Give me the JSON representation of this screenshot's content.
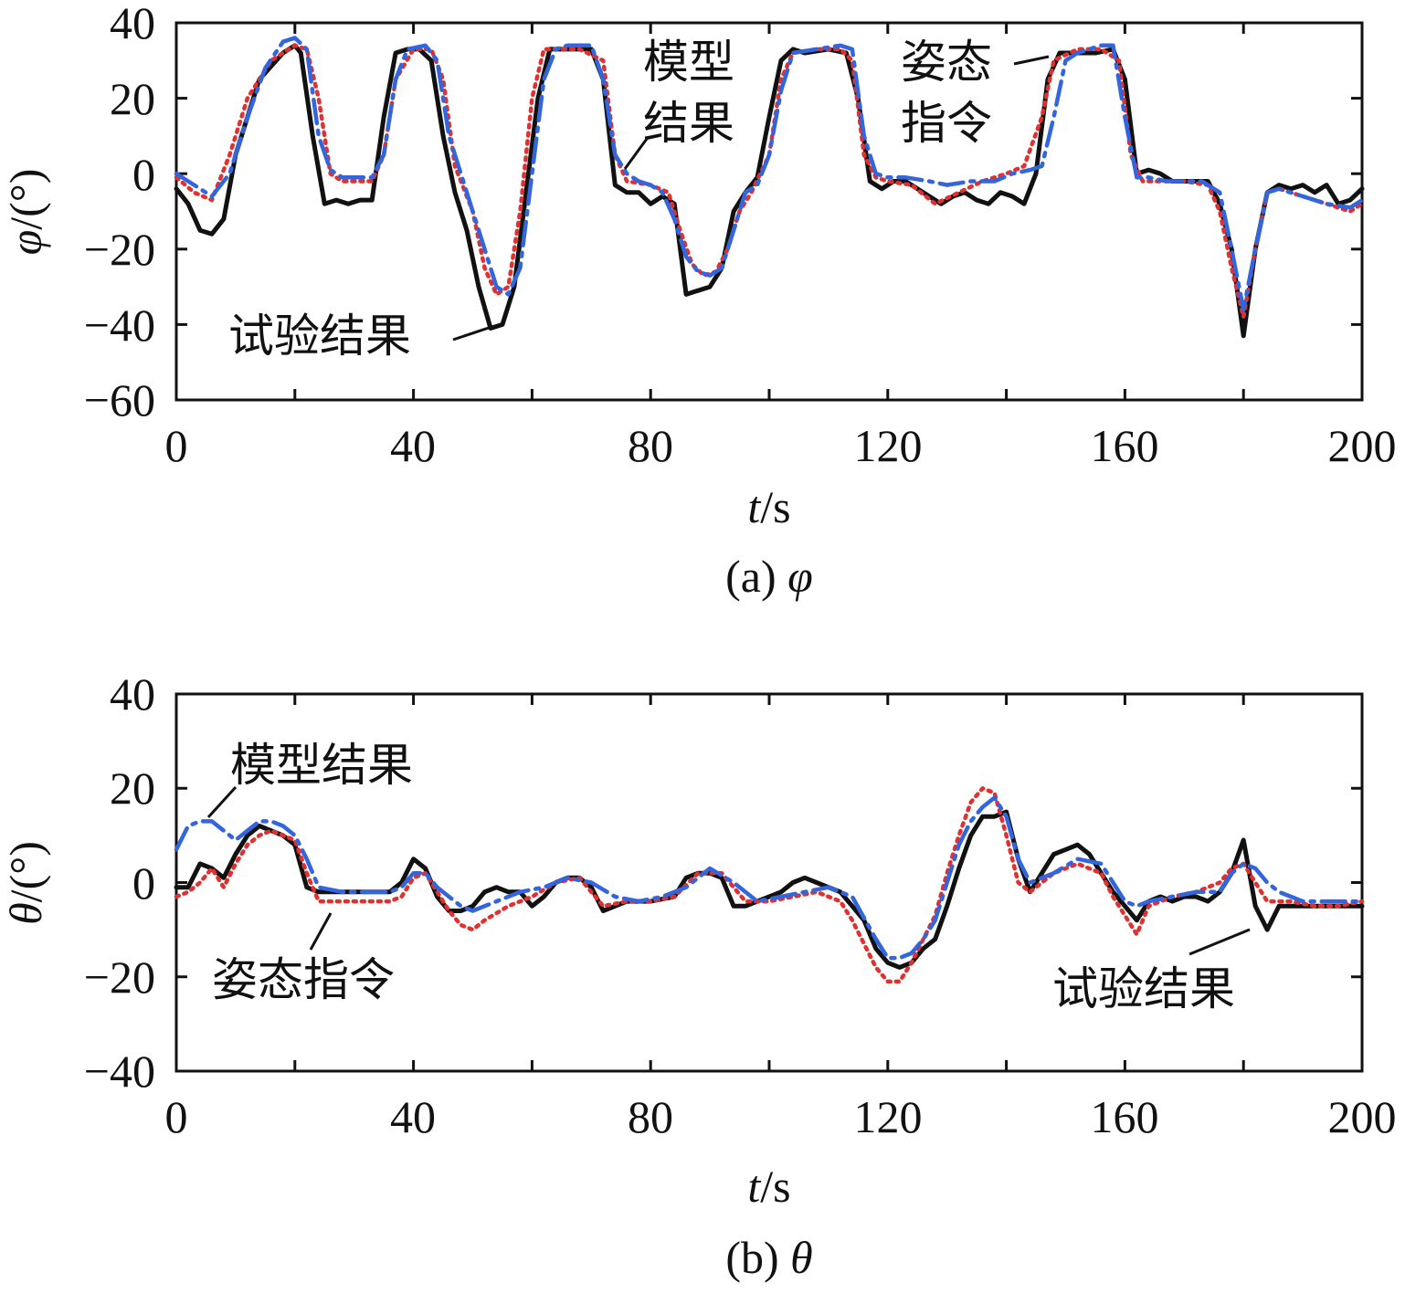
{
  "chart_data": [
    {
      "type": "line",
      "caption": "(a) φ",
      "caption_prefix": "(a) ",
      "caption_symbol": "φ",
      "xlabel_var": "t",
      "xlabel_unit": "/s",
      "ylabel_var": "φ",
      "ylabel_unit": "/(°)",
      "xlim": [
        0,
        200
      ],
      "ylim": [
        -60,
        40
      ],
      "xticks": [
        "0",
        "40",
        "80",
        "120",
        "160",
        "200"
      ],
      "xtick_values": [
        0,
        40,
        80,
        120,
        160,
        200
      ],
      "yticks": [
        "40",
        "20",
        "0",
        "−20",
        "−40",
        "−60"
      ],
      "ytick_values": [
        40,
        20,
        0,
        -20,
        -40,
        -60
      ],
      "grid": false,
      "series": [
        {
          "name": "试验结果",
          "color": "#111111",
          "style": "solid",
          "x": [
            0,
            2,
            4,
            6,
            8,
            10,
            14,
            18,
            20,
            21,
            23,
            25,
            27,
            29,
            31,
            33,
            35,
            37,
            39,
            41,
            43,
            45,
            47,
            49,
            51,
            53,
            55,
            57,
            59,
            61,
            63,
            65,
            67,
            70,
            72,
            74,
            76,
            78,
            80,
            82,
            84,
            86,
            88,
            90,
            92,
            94,
            96,
            98,
            100,
            102,
            104,
            106,
            110,
            113,
            115,
            117,
            119,
            121,
            123,
            125,
            127,
            129,
            131,
            133,
            135,
            137,
            139,
            141,
            143,
            145,
            147,
            149,
            151,
            155,
            158,
            160,
            162,
            164,
            166,
            168,
            170,
            172,
            174,
            176,
            178,
            180,
            182,
            184,
            186,
            188,
            190,
            192,
            194,
            196,
            198,
            200
          ],
          "y": [
            -4,
            -8,
            -15,
            -16,
            -12,
            5,
            25,
            32,
            34,
            32,
            10,
            -8,
            -7,
            -8,
            -7,
            -7,
            15,
            32,
            33,
            33,
            30,
            10,
            -5,
            -15,
            -30,
            -41,
            -40,
            -30,
            -5,
            20,
            33,
            33,
            33,
            33,
            25,
            -3,
            -5,
            -5,
            -8,
            -6,
            -8,
            -32,
            -31,
            -30,
            -25,
            -10,
            -5,
            -1,
            15,
            30,
            33,
            32,
            33,
            32,
            20,
            -2,
            -4,
            -2,
            -2,
            -4,
            -6,
            -8,
            -6,
            -5,
            -7,
            -8,
            -5,
            -6,
            -8,
            0,
            25,
            32,
            32,
            32,
            33,
            25,
            0,
            1,
            0,
            -2,
            -2,
            -2,
            -2,
            -8,
            -20,
            -43,
            -20,
            -5,
            -3,
            -4,
            -3,
            -5,
            -3,
            -8,
            -7,
            -4
          ]
        },
        {
          "name": "模型结果",
          "color": "#3366dd",
          "style": "dashdot",
          "x": [
            0,
            3,
            6,
            9,
            12,
            15,
            18,
            20,
            22,
            24,
            26,
            28,
            30,
            33,
            35,
            37,
            39,
            42,
            44,
            46,
            48,
            50,
            52,
            54,
            56,
            58,
            60,
            62,
            64,
            66,
            70,
            72,
            74,
            76,
            78,
            80,
            82,
            84,
            86,
            88,
            90,
            92,
            94,
            96,
            98,
            100,
            102,
            104,
            108,
            112,
            114,
            116,
            118,
            120,
            123,
            127,
            130,
            134,
            138,
            141,
            144,
            146,
            148,
            150,
            152,
            156,
            158,
            160,
            162,
            164,
            167,
            170,
            173,
            176,
            178,
            180,
            182,
            184,
            186,
            190,
            194,
            198,
            200
          ],
          "y": [
            0,
            -3,
            -6,
            0,
            15,
            28,
            35,
            36,
            33,
            10,
            1,
            -1,
            -1,
            -1,
            5,
            25,
            33,
            34,
            30,
            10,
            0,
            -10,
            -20,
            -30,
            -32,
            -25,
            0,
            25,
            33,
            34,
            34,
            25,
            5,
            0,
            -2,
            -3,
            -5,
            -12,
            -22,
            -26,
            -27,
            -25,
            -15,
            -5,
            -3,
            5,
            22,
            32,
            33,
            34,
            33,
            10,
            0,
            -1,
            -1,
            -2,
            -3,
            -2,
            -2,
            0,
            1,
            2,
            15,
            30,
            32,
            34,
            34,
            15,
            -1,
            -1,
            -2,
            -2,
            -2,
            -5,
            -20,
            -36,
            -20,
            -5,
            -4,
            -6,
            -8,
            -9,
            -7
          ]
        },
        {
          "name": "姿态指令",
          "color": "#e03030",
          "style": "dotted",
          "x": [
            0,
            3,
            6,
            9,
            12,
            16,
            20,
            22,
            24,
            26,
            28,
            30,
            33,
            35,
            37,
            40,
            43,
            45,
            47,
            50,
            52,
            54,
            56,
            58,
            60,
            62,
            64,
            68,
            72,
            74,
            76,
            80,
            83,
            85,
            87,
            89,
            91,
            93,
            95,
            97,
            100,
            102,
            104,
            108,
            112,
            114,
            116,
            118,
            120,
            124,
            128,
            132,
            136,
            140,
            143,
            146,
            148,
            152,
            156,
            159,
            161,
            163,
            166,
            170,
            174,
            176,
            178,
            180,
            182,
            184,
            186,
            190,
            194,
            198,
            200
          ],
          "y": [
            -1,
            -5,
            -7,
            5,
            20,
            30,
            34,
            33,
            20,
            0,
            -2,
            -2,
            -2,
            5,
            25,
            33,
            33,
            25,
            2,
            -10,
            -25,
            -32,
            -30,
            -10,
            20,
            33,
            33,
            33,
            30,
            5,
            -2,
            -3,
            -5,
            -15,
            -24,
            -27,
            -26,
            -20,
            -10,
            -5,
            5,
            25,
            32,
            33,
            33,
            30,
            5,
            -1,
            -2,
            -3,
            -8,
            -5,
            -2,
            0,
            2,
            15,
            30,
            33,
            33,
            30,
            5,
            -2,
            -2,
            -2,
            -3,
            -10,
            -25,
            -38,
            -20,
            -5,
            -4,
            -6,
            -8,
            -10,
            -8
          ]
        }
      ],
      "annotations": [
        {
          "lines": [
            "模型",
            "结果"
          ],
          "series": "模型结果"
        },
        {
          "lines": [
            "姿态",
            "指令"
          ],
          "series": "姿态指令"
        },
        {
          "lines": [
            "试验结果"
          ],
          "series": "试验结果"
        }
      ]
    },
    {
      "type": "line",
      "caption": "(b) θ",
      "caption_prefix": "(b) ",
      "caption_symbol": "θ",
      "xlabel_var": "t",
      "xlabel_unit": "/s",
      "ylabel_var": "θ",
      "ylabel_unit": "/(°)",
      "xlim": [
        0,
        200
      ],
      "ylim": [
        -40,
        40
      ],
      "xticks": [
        "0",
        "40",
        "80",
        "120",
        "160",
        "200"
      ],
      "xtick_values": [
        0,
        40,
        80,
        120,
        160,
        200
      ],
      "yticks": [
        "40",
        "20",
        "0",
        "−20",
        "−40"
      ],
      "ytick_values": [
        40,
        20,
        0,
        -20,
        -40
      ],
      "grid": false,
      "series": [
        {
          "name": "试验结果",
          "color": "#111111",
          "style": "solid",
          "x": [
            0,
            2,
            4,
            6,
            8,
            10,
            12,
            14,
            16,
            18,
            20,
            22,
            24,
            26,
            30,
            34,
            36,
            38,
            40,
            42,
            44,
            46,
            48,
            50,
            52,
            54,
            56,
            58,
            60,
            62,
            64,
            66,
            68,
            70,
            72,
            74,
            76,
            80,
            84,
            86,
            88,
            90,
            92,
            94,
            96,
            98,
            100,
            102,
            104,
            106,
            108,
            110,
            112,
            114,
            116,
            118,
            120,
            122,
            124,
            126,
            128,
            130,
            132,
            134,
            136,
            138,
            140,
            142,
            144,
            146,
            148,
            150,
            152,
            154,
            156,
            158,
            160,
            162,
            164,
            166,
            168,
            170,
            172,
            174,
            176,
            178,
            180,
            182,
            184,
            186,
            190,
            194,
            198,
            200
          ],
          "y": [
            -1,
            -1,
            4,
            3,
            1,
            6,
            10,
            12,
            11,
            10,
            8,
            -1,
            -2,
            -2,
            -2,
            -2,
            -2,
            0,
            5,
            3,
            -3,
            -6,
            -6,
            -5,
            -2,
            -1,
            -2,
            -2,
            -5,
            -3,
            0,
            1,
            1,
            -1,
            -6,
            -5,
            -4,
            -4,
            -3,
            1,
            2,
            2,
            1,
            -5,
            -5,
            -4,
            -3,
            -2,
            0,
            1,
            0,
            -1,
            -2,
            -5,
            -8,
            -14,
            -17,
            -18,
            -17,
            -14,
            -12,
            -5,
            3,
            10,
            14,
            14,
            15,
            5,
            -2,
            2,
            6,
            7,
            8,
            6,
            2,
            -2,
            -5,
            -8,
            -4,
            -3,
            -4,
            -3,
            -3,
            -4,
            -2,
            2,
            9,
            -5,
            -10,
            -5,
            -5,
            -5,
            -5,
            -5
          ]
        },
        {
          "name": "模型结果",
          "color": "#3366dd",
          "style": "dashdot",
          "x": [
            0,
            2,
            4,
            6,
            8,
            10,
            12,
            14,
            16,
            18,
            20,
            22,
            24,
            28,
            32,
            36,
            38,
            40,
            42,
            44,
            46,
            48,
            50,
            54,
            58,
            62,
            66,
            70,
            74,
            78,
            82,
            86,
            90,
            94,
            98,
            102,
            106,
            110,
            114,
            118,
            120,
            122,
            124,
            126,
            128,
            130,
            132,
            134,
            136,
            138,
            140,
            142,
            144,
            148,
            152,
            156,
            158,
            160,
            162,
            164,
            168,
            172,
            176,
            178,
            180,
            182,
            184,
            186,
            190,
            194,
            198,
            200
          ],
          "y": [
            7,
            12,
            13,
            13,
            11,
            9,
            11,
            13,
            13,
            12,
            10,
            5,
            -1,
            -2,
            -2,
            -2,
            -1,
            2,
            2,
            -1,
            -3,
            -5,
            -6,
            -4,
            -2,
            -1,
            1,
            0,
            -3,
            -4,
            -3,
            -1,
            3,
            0,
            -4,
            -3,
            -2,
            -1,
            -3,
            -12,
            -16,
            -16,
            -15,
            -12,
            -8,
            0,
            8,
            13,
            16,
            18,
            14,
            5,
            0,
            2,
            5,
            4,
            0,
            -4,
            -5,
            -4,
            -3,
            -2,
            -2,
            2,
            4,
            3,
            0,
            -2,
            -4,
            -4,
            -4,
            -4
          ]
        },
        {
          "name": "姿态指令",
          "color": "#e03030",
          "style": "dotted",
          "x": [
            0,
            2,
            4,
            6,
            8,
            10,
            12,
            14,
            16,
            18,
            20,
            22,
            24,
            28,
            32,
            36,
            38,
            40,
            42,
            44,
            46,
            48,
            50,
            52,
            56,
            60,
            64,
            68,
            72,
            76,
            80,
            84,
            88,
            92,
            96,
            100,
            104,
            108,
            112,
            114,
            116,
            118,
            120,
            122,
            124,
            126,
            128,
            130,
            132,
            134,
            136,
            138,
            140,
            142,
            144,
            148,
            152,
            156,
            158,
            160,
            162,
            164,
            168,
            172,
            176,
            178,
            180,
            182,
            184,
            188,
            192,
            196,
            200
          ],
          "y": [
            -3,
            -2,
            0,
            3,
            -1,
            4,
            8,
            10,
            11,
            10,
            9,
            2,
            -4,
            -4,
            -4,
            -4,
            -3,
            1,
            2,
            -2,
            -6,
            -9,
            -10,
            -8,
            -5,
            -3,
            0,
            1,
            -5,
            -4,
            -4,
            -3,
            2,
            2,
            -4,
            -4,
            -3,
            -2,
            -4,
            -8,
            -13,
            -18,
            -21,
            -21,
            -17,
            -12,
            -7,
            2,
            10,
            17,
            20,
            19,
            10,
            0,
            -2,
            2,
            4,
            2,
            -3,
            -7,
            -11,
            -5,
            -3,
            -2,
            0,
            3,
            4,
            0,
            -4,
            -4,
            -5,
            -5,
            -4
          ]
        }
      ],
      "annotations": [
        {
          "lines": [
            "模型结果"
          ],
          "series": "模型结果"
        },
        {
          "lines": [
            "姿态指令"
          ],
          "series": "姿态指令"
        },
        {
          "lines": [
            "试验结果"
          ],
          "series": "试验结果"
        }
      ]
    }
  ]
}
